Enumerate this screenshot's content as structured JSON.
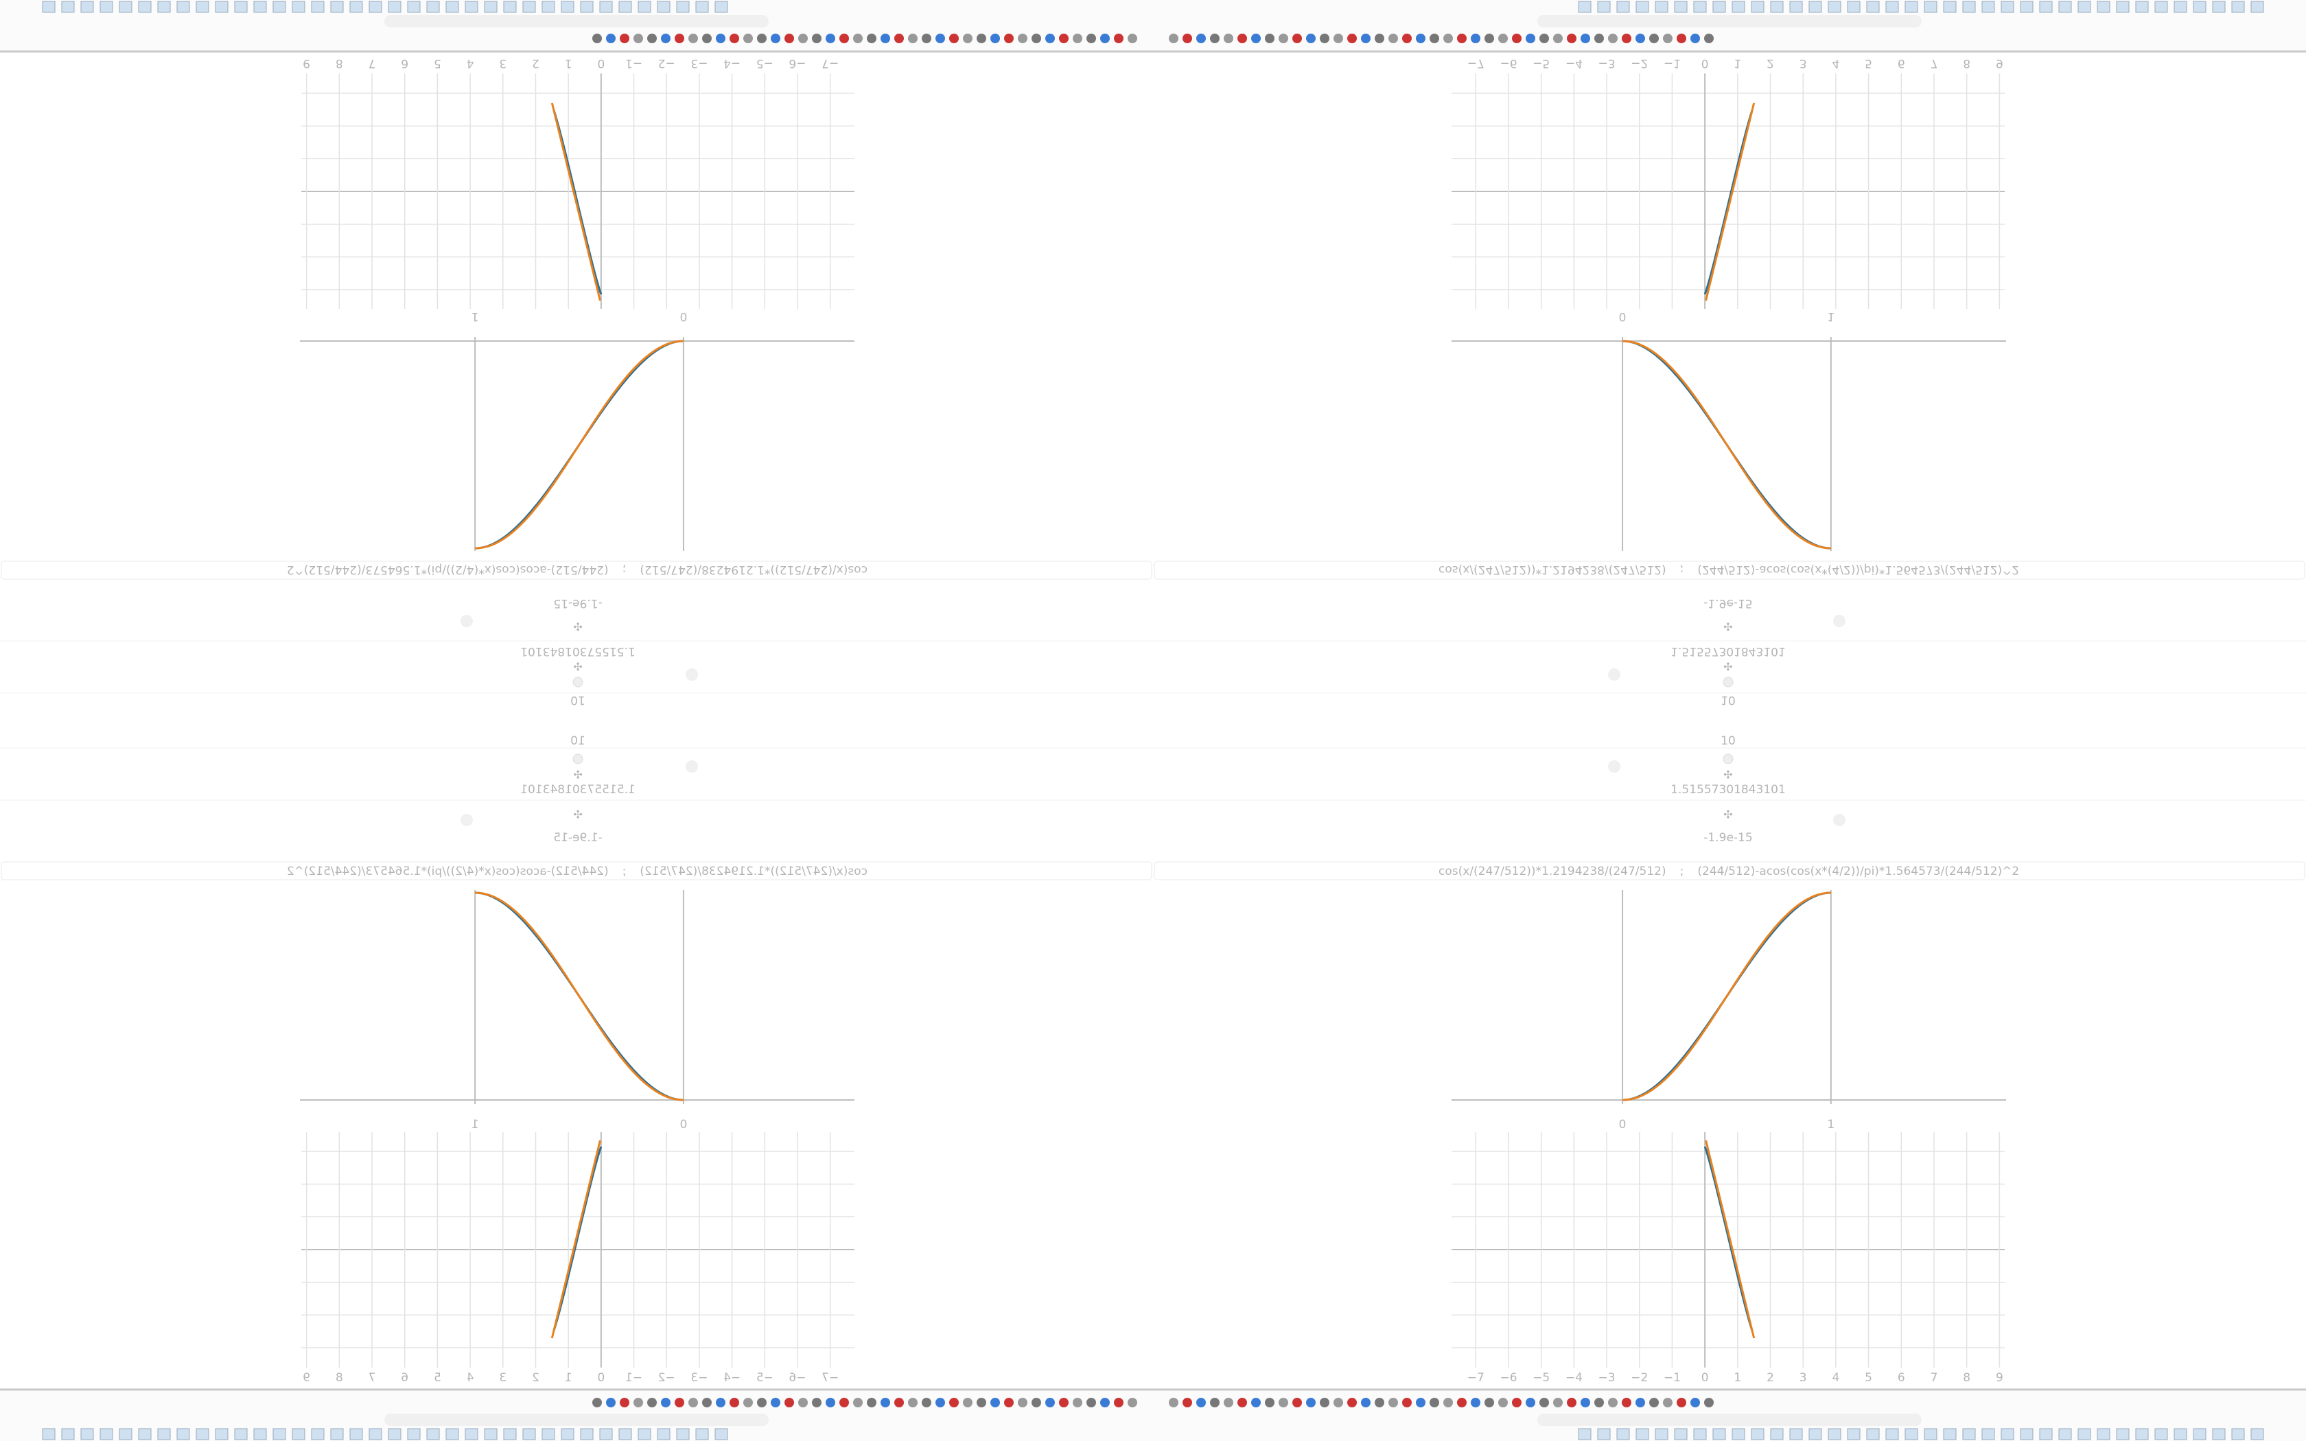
{
  "formula": {
    "left": "cos(x/(247/512))*1.2194238/(247/512)",
    "separator": ";",
    "right": "(244/512)-acos(cos(x*(4/2))/pi)*1.564573/(244/512)^2"
  },
  "readouts": [
    "10",
    "1.51557301843101",
    "-1.9e-15"
  ],
  "sigmoid_plot": {
    "xlim": [
      -0.82,
      1.84
    ],
    "xticks": [
      0,
      1
    ]
  },
  "grid_plot": {
    "xlim": [
      -7.74,
      9.16
    ],
    "xticks": [
      {
        "value": -7,
        "label": "−7"
      },
      {
        "value": -6,
        "label": "−6"
      },
      {
        "value": -5,
        "label": "−5"
      },
      {
        "value": -4,
        "label": "−4"
      },
      {
        "value": -3,
        "label": "−3"
      },
      {
        "value": -2,
        "label": "−2"
      },
      {
        "value": -1,
        "label": "−1"
      },
      0,
      1,
      2,
      3,
      4,
      5,
      6,
      7,
      8,
      9
    ]
  }
}
